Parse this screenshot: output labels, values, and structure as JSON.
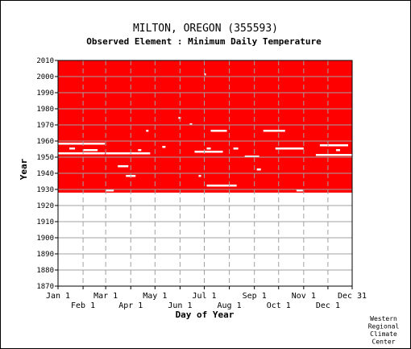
{
  "chart_data": {
    "type": "heatmap",
    "title": "MILTON, OREGON   (355593)",
    "subtitle": "Observed Element : Minimum Daily Temperature",
    "xlabel": "Day of Year",
    "ylabel": "Year",
    "x_ticks_upper": [
      "Jan 1",
      "Mar 1",
      "May 1",
      "Jul 1",
      "Sep 1",
      "Nov 1",
      "Dec 31"
    ],
    "x_ticks_lower": [
      "Feb 1",
      "Apr 1",
      "Jun 1",
      "Aug 1",
      "Oct 1",
      "Dec 1"
    ],
    "y_ticks": [
      1870,
      1880,
      1890,
      1900,
      1910,
      1920,
      1930,
      1940,
      1950,
      1960,
      1970,
      1980,
      1990,
      2000,
      2010
    ],
    "ylim": [
      1870,
      2010
    ],
    "xlim_days": [
      1,
      365
    ],
    "data_extent": {
      "start_year": 1928,
      "end_year": 2010
    },
    "grid": true,
    "legend": "none",
    "color_present": "#ff0000",
    "color_missing": "#ffffff",
    "missing_segments": [
      {
        "year": 1958,
        "start_day": 1,
        "end_day": 59
      },
      {
        "year": 1952,
        "start_day": 1,
        "end_day": 59
      },
      {
        "year": 1952,
        "start_day": 60,
        "end_day": 115
      },
      {
        "year": 1955,
        "start_day": 15,
        "end_day": 22
      },
      {
        "year": 1954,
        "start_day": 32,
        "end_day": 50
      },
      {
        "year": 1944,
        "start_day": 75,
        "end_day": 88
      },
      {
        "year": 1938,
        "start_day": 85,
        "end_day": 97
      },
      {
        "year": 1929,
        "start_day": 60,
        "end_day": 70
      },
      {
        "year": 1953,
        "start_day": 170,
        "end_day": 205
      },
      {
        "year": 1966,
        "start_day": 190,
        "end_day": 210
      },
      {
        "year": 1932,
        "start_day": 185,
        "end_day": 222
      },
      {
        "year": 1950,
        "start_day": 232,
        "end_day": 250
      },
      {
        "year": 1966,
        "start_day": 255,
        "end_day": 282
      },
      {
        "year": 1955,
        "start_day": 270,
        "end_day": 305
      },
      {
        "year": 1951,
        "start_day": 320,
        "end_day": 365
      },
      {
        "year": 1957,
        "start_day": 325,
        "end_day": 360
      },
      {
        "year": 1942,
        "start_day": 247,
        "end_day": 252
      },
      {
        "year": 1929,
        "start_day": 296,
        "end_day": 304
      },
      {
        "year": 1974,
        "start_day": 150,
        "end_day": 153
      },
      {
        "year": 1970,
        "start_day": 164,
        "end_day": 167
      },
      {
        "year": 1956,
        "start_day": 130,
        "end_day": 134
      },
      {
        "year": 1966,
        "start_day": 110,
        "end_day": 113
      },
      {
        "year": 2001,
        "start_day": 182,
        "end_day": 184
      },
      {
        "year": 1955,
        "start_day": 185,
        "end_day": 190
      },
      {
        "year": 1954,
        "start_day": 100,
        "end_day": 104
      },
      {
        "year": 1955,
        "start_day": 218,
        "end_day": 224
      },
      {
        "year": 1954,
        "start_day": 345,
        "end_day": 350
      },
      {
        "year": 1938,
        "start_day": 175,
        "end_day": 178
      }
    ]
  },
  "footer": {
    "credit_lines": [
      "Western",
      "Regional",
      "Climate",
      "Center"
    ]
  }
}
